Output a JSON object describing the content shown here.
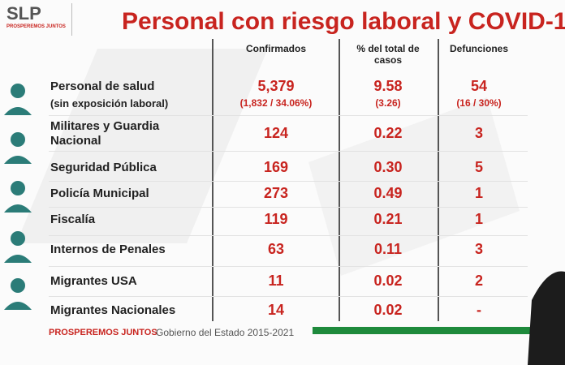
{
  "header": {
    "logo": "SLP",
    "logo_tagline": "PROSPEREMOS JUNTOS",
    "title": "Personal con riesgo laboral y COVID-1"
  },
  "table": {
    "columns": [
      "Confirmados",
      "% del total de casos",
      "Defunciones"
    ],
    "rows": [
      {
        "label": "Personal de salud",
        "sublabel": "(sin exposición laboral)",
        "confirmed": "5,379",
        "confirmed_note": "(1,832 / 34.06%)",
        "percent": "9.58",
        "percent_note": "(3.26)",
        "deaths": "54",
        "deaths_note": "(16 / 30%)"
      },
      {
        "label": "Militares y Guardia Nacional",
        "confirmed": "124",
        "percent": "0.22",
        "deaths": "3"
      },
      {
        "label": "Seguridad Pública",
        "confirmed": "169",
        "percent": "0.30",
        "deaths": "5"
      },
      {
        "label": "Policía Municipal",
        "confirmed": "273",
        "percent": "0.49",
        "deaths": "1"
      },
      {
        "label": "Fiscalía",
        "confirmed": "119",
        "percent": "0.21",
        "deaths": "1"
      },
      {
        "label": "Internos de Penales",
        "confirmed": "63",
        "percent": "0.11",
        "deaths": "3"
      },
      {
        "label": "Migrantes USA",
        "confirmed": "11",
        "percent": "0.02",
        "deaths": "2"
      },
      {
        "label": "Migrantes Nacionales",
        "confirmed": "14",
        "percent": "0.02",
        "deaths": "-"
      }
    ]
  },
  "footer": {
    "tagline": "PROSPEREMOS JUNTOS",
    "text": "Gobierno del Estado 2015-2021"
  }
}
